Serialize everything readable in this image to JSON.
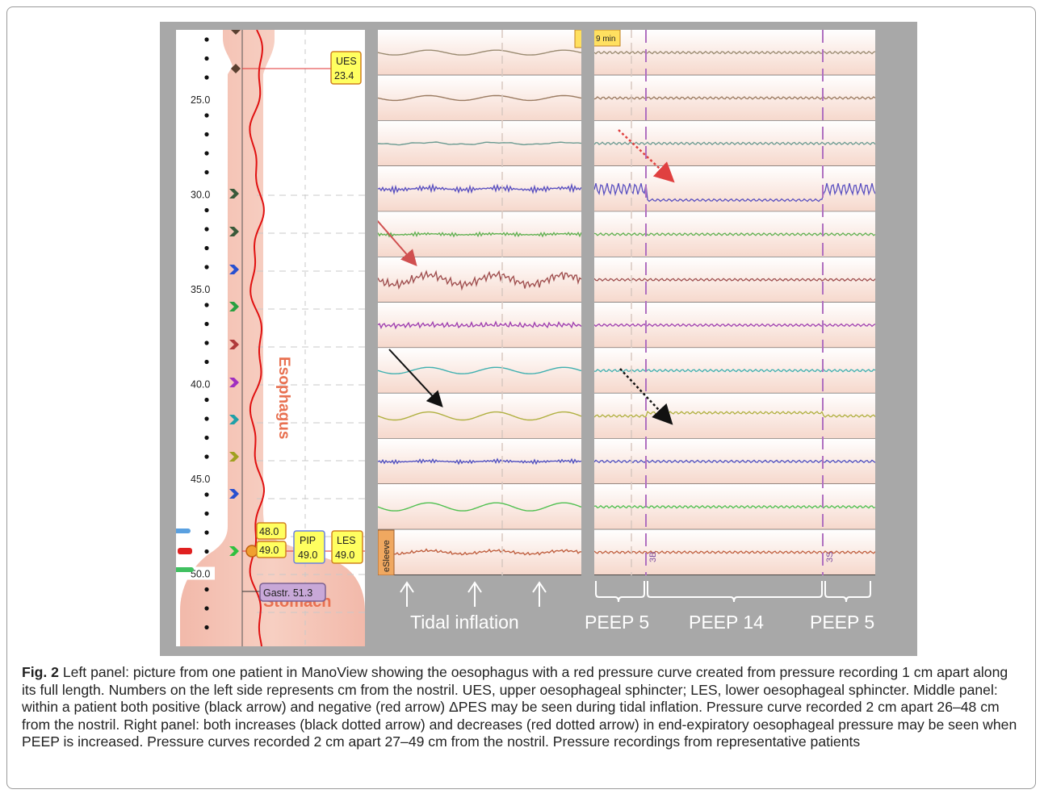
{
  "figure": {
    "left_panel": {
      "depth_ticks": [
        {
          "label": "25.0",
          "cm": 25
        },
        {
          "label": "30.0",
          "cm": 30
        },
        {
          "label": "35.0",
          "cm": 35
        },
        {
          "label": "40.0",
          "cm": 40
        },
        {
          "label": "45.0",
          "cm": 45
        },
        {
          "label": "50.0",
          "cm": 50
        }
      ],
      "organ_labels": {
        "esophagus": "Esophagus",
        "stomach": "Stomach"
      },
      "markers": {
        "ues": {
          "name": "UES",
          "value": "23.4"
        },
        "les_top": {
          "value": "48.0"
        },
        "les_bottom": {
          "value": "49.0"
        },
        "pip": {
          "name": "PIP",
          "value": "49.0"
        },
        "les": {
          "name": "LES",
          "value": "49.0"
        },
        "gastric": {
          "label": "Gastr. 51.3"
        }
      },
      "sensor_colors": [
        "#3a5a3a",
        "#3a5a3a",
        "#2850d0",
        "#2aa040",
        "#b03a3a",
        "#a030c0",
        "#20a0a8",
        "#a0a020",
        "#2850d0",
        "#30c040",
        "#b02020"
      ]
    },
    "middle_panel": {
      "sleeve_label": "eSleeve",
      "top_badge": "9 min",
      "annotation": "Tidal inflation",
      "arrow_count": 3,
      "trace_colors": [
        "#9a8a70",
        "#9a7a60",
        "#6a9a90",
        "#5a50c0",
        "#60b050",
        "#a05050",
        "#a040b0",
        "#40b0b0",
        "#b0b040",
        "#5050c0",
        "#50c050",
        "#c06040"
      ]
    },
    "right_panel": {
      "phase_labels": [
        "PEEP 5",
        "PEEP 14",
        "PEEP 5"
      ],
      "marker_labels": [
        "3B",
        "3S"
      ],
      "trace_colors": [
        "#9a8a70",
        "#9a7a60",
        "#6a9a90",
        "#5a50c0",
        "#60b050",
        "#a05050",
        "#a040b0",
        "#40b0b0",
        "#b0b040",
        "#5050c0",
        "#50c050",
        "#c06040"
      ]
    }
  },
  "caption": {
    "label": "Fig. 2",
    "text": " Left panel: picture from one patient in ManoView showing the oesophagus with a red pressure curve created from pressure recording 1 cm apart along its full length. Numbers on the left side represents cm from the nostril. UES, upper oesophageal sphincter; LES, lower oesophageal sphincter. Middle panel: within a patient both positive (black arrow) and negative (red arrow) ΔPES may be seen during tidal inflation. Pressure curve recorded 2 cm apart 26–48 cm from the nostril. Right panel: both increases (black dotted arrow) and decreases (red dotted arrow) in end-expiratory oesophageal pressure may be seen when PEEP is increased. Pressure curves recorded 2 cm apart 27–49 cm from the nostril. Pressure recordings from representative patients"
  }
}
